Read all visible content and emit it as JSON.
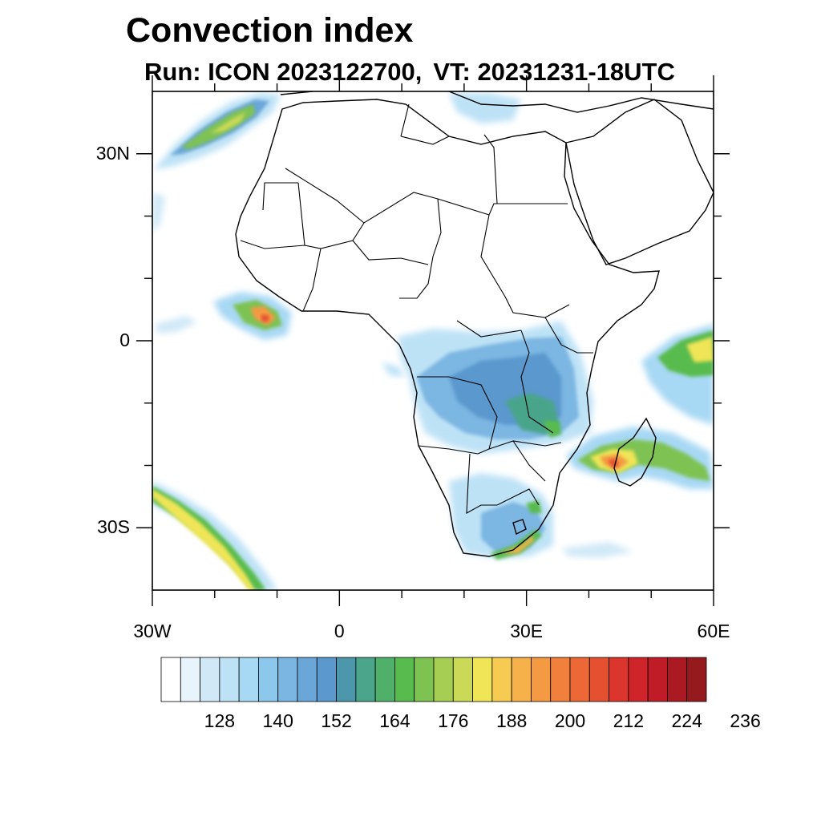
{
  "title": "Convection index",
  "subtitle": {
    "run": "Run: ICON 2023122700,",
    "vt": "VT: 20231231-18UTC"
  },
  "map": {
    "projection": "Cylindrical equidistant",
    "lon_range": [
      -30,
      60
    ],
    "lat_range": [
      -40,
      40
    ],
    "lat_labels": [
      {
        "lat": 30,
        "text": "30N"
      },
      {
        "lat": 0,
        "text": "0"
      },
      {
        "lat": -30,
        "text": "30S"
      }
    ],
    "lon_labels": [
      {
        "lon": -30,
        "text": "30W"
      },
      {
        "lon": 0,
        "text": "0"
      },
      {
        "lon": 30,
        "text": "30E"
      },
      {
        "lon": 60,
        "text": "60E"
      }
    ],
    "minor_lon_ticks": [
      -20,
      -10,
      10,
      20,
      40,
      50
    ],
    "minor_lat_ticks": [
      20,
      10,
      -10,
      -20
    ]
  },
  "colorbar": {
    "colors": [
      "#ffffff",
      "#e8f4fb",
      "#d1e9f7",
      "#bde2f6",
      "#a7d8f4",
      "#8cc7ec",
      "#7bb6e2",
      "#6aa6d8",
      "#5a98cd",
      "#4c97ac",
      "#4aa58a",
      "#50b06a",
      "#58bb4e",
      "#7ec252",
      "#a6ce52",
      "#cad956",
      "#efe557",
      "#f7cb52",
      "#f6b14a",
      "#f49a42",
      "#f0803c",
      "#ec6836",
      "#e55030",
      "#dc352d",
      "#cf2429",
      "#bf1c27",
      "#ab1923",
      "#951a1d"
    ],
    "labels": [
      "128",
      "140",
      "152",
      "164",
      "176",
      "188",
      "200",
      "212",
      "224",
      "236"
    ]
  }
}
